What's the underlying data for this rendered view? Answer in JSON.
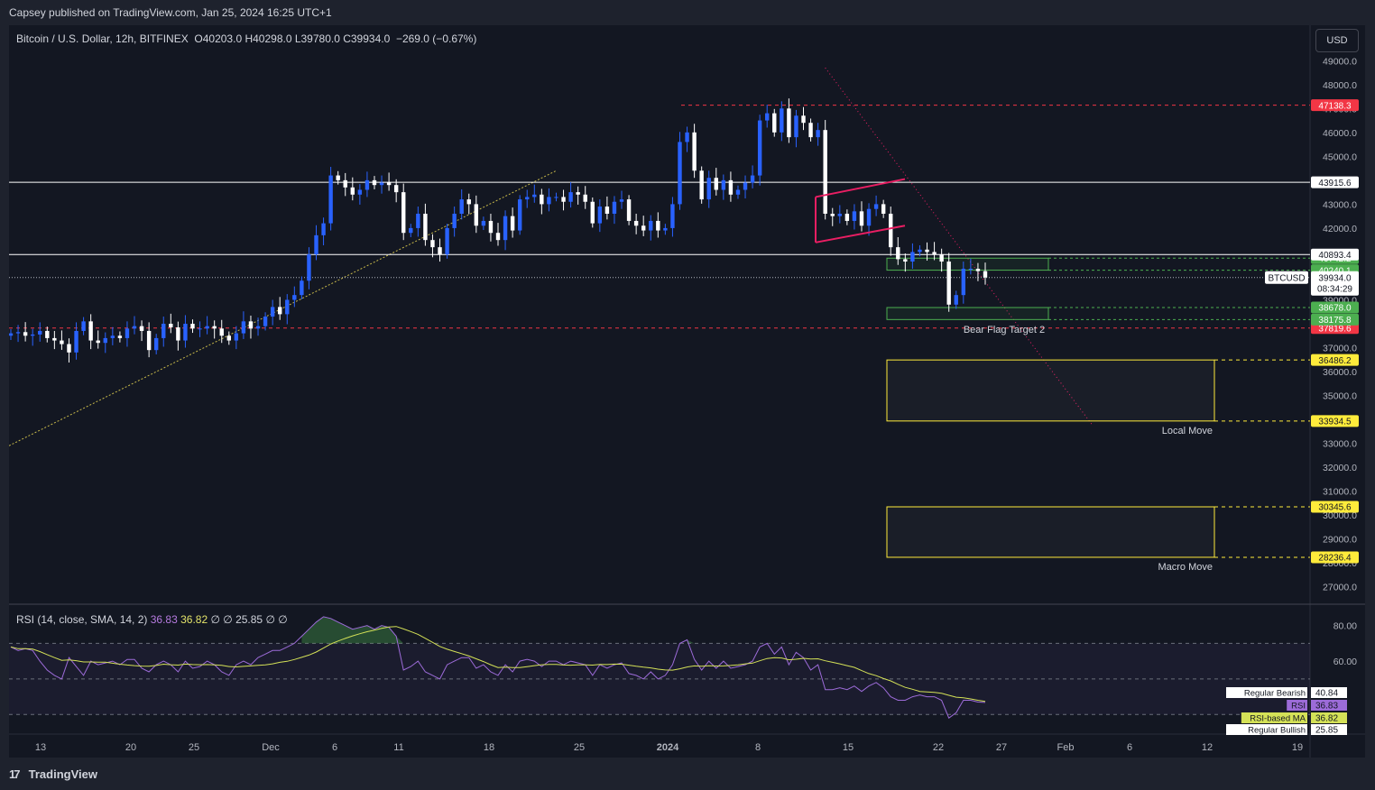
{
  "header": {
    "publisher": "Capsey published on TradingView.com, Jan 25, 2024 16:25 UTC+1"
  },
  "legend": {
    "symbol": "Bitcoin / U.S. Dollar, 12h, BITFINEX",
    "ohlc": "O40203.0  H40298.0  L39780.0  C39934.0",
    "change": "−269.0 (−0.67%)"
  },
  "currency": "USD",
  "footer": {
    "brand": "TradingView",
    "logo": "17"
  },
  "colors": {
    "bg": "#131722",
    "bull": "#2962ff",
    "bear": "#ffffff",
    "red_line": "#f23645",
    "pink": "#e91e63",
    "green_box": "#4caf50",
    "yellow": "#ffeb3b",
    "rsi_line": "#9c6bd8",
    "rsi_ma": "#d4e157"
  },
  "chart_data": {
    "type": "candlestick",
    "symbol": "BTCUSD",
    "interval": "12h",
    "ylim": [
      26500,
      49500
    ],
    "y_ticks": [
      27000,
      28000,
      29000,
      30000,
      31000,
      32000,
      33000,
      34000,
      35000,
      36000,
      37000,
      38000,
      39000,
      40000,
      41000,
      42000,
      43000,
      44000,
      45000,
      46000,
      47000,
      48000,
      49000
    ],
    "x_labels": [
      "13",
      "20",
      "25",
      "Dec",
      "6",
      "11",
      "18",
      "25",
      "2024",
      "8",
      "15",
      "22",
      "27",
      "Feb",
      "6",
      "12",
      "19"
    ],
    "close": [
      37600,
      37650,
      37500,
      37550,
      37700,
      37400,
      37300,
      37150,
      36800,
      37700,
      38100,
      37300,
      37200,
      37400,
      37500,
      37400,
      37800,
      37900,
      37700,
      36900,
      37400,
      38000,
      37850,
      37300,
      38000,
      37800,
      37800,
      37900,
      37800,
      37500,
      37300,
      37600,
      38100,
      37800,
      37900,
      38300,
      38700,
      38400,
      39000,
      39200,
      39800,
      40900,
      41700,
      42200,
      44200,
      44000,
      43700,
      43400,
      43600,
      44000,
      43800,
      43900,
      43800,
      43500,
      41800,
      42000,
      42600,
      41500,
      41200,
      40900,
      42000,
      42600,
      43200,
      43000,
      42100,
      42300,
      41800,
      41500,
      42500,
      41900,
      43200,
      43300,
      43400,
      43000,
      43300,
      43300,
      43100,
      43500,
      43400,
      43100,
      42200,
      42900,
      42600,
      43100,
      43200,
      42300,
      42100,
      41900,
      42300,
      41900,
      42000,
      43000,
      45600,
      46000,
      44400,
      43200,
      44100,
      43600,
      44000,
      43400,
      43600,
      43900,
      44200,
      46500,
      46800,
      46000,
      47000,
      45800,
      46700,
      46400,
      45800,
      46100,
      42600,
      42500,
      42600,
      42300,
      42700,
      42100,
      42800,
      43000,
      42600,
      41200,
      40700,
      40600,
      41000,
      41100,
      41000,
      40900,
      40600,
      38800,
      39200,
      40300,
      40300,
      40200,
      39934
    ],
    "tags_right": {
      "black": [
        "43915.6",
        "40893.4",
        "39934.0"
      ],
      "green": [
        "40742.2",
        "40240.1",
        "38678.0",
        "38175.8"
      ],
      "red": [
        "47138.3",
        "37819.6"
      ],
      "yellow": [
        "36486.2",
        "33934.5",
        "30345.6",
        "28236.4"
      ],
      "countdown": "08:34:29",
      "symbol_tag": "BTCUSD"
    },
    "annotations": {
      "bear_flag": "Bear Flag Target 2",
      "local_move": "Local Move",
      "macro_move": "Macro Move"
    },
    "rsi": {
      "title": "RSI (14, close, SMA, 14, 2)",
      "value": "36.83",
      "ma_value": "36.82",
      "extra": "25.85",
      "null_glyph": "∅",
      "ylim": [
        20,
        90
      ],
      "ticks": [
        "80.00",
        "60.00"
      ],
      "band": [
        30,
        70
      ],
      "mid": 50,
      "labels": [
        {
          "name": "Regular Bearish",
          "value": "40.84"
        },
        {
          "name": "RSI",
          "value": "36.83"
        },
        {
          "name": "RSI-based MA",
          "value": "36.82"
        },
        {
          "name": "Regular Bullish",
          "value": "25.85"
        }
      ],
      "values": [
        68,
        66,
        67,
        66,
        60,
        55,
        52,
        50,
        62,
        57,
        52,
        60,
        58,
        59,
        60,
        58,
        61,
        61,
        56,
        54,
        58,
        60,
        58,
        54,
        60,
        56,
        57,
        60,
        58,
        54,
        52,
        58,
        60,
        58,
        62,
        64,
        66,
        66,
        68,
        70,
        74,
        78,
        82,
        85,
        84,
        82,
        80,
        78,
        79,
        80,
        78,
        80,
        79,
        74,
        55,
        57,
        60,
        54,
        52,
        50,
        58,
        60,
        62,
        62,
        56,
        58,
        54,
        52,
        58,
        54,
        60,
        61,
        60,
        57,
        60,
        60,
        58,
        60,
        59,
        58,
        52,
        58,
        56,
        58,
        59,
        53,
        52,
        50,
        54,
        50,
        52,
        58,
        70,
        72,
        61,
        55,
        60,
        56,
        60,
        56,
        57,
        58,
        60,
        68,
        70,
        64,
        68,
        58,
        65,
        62,
        55,
        58,
        44,
        44,
        45,
        44,
        46,
        43,
        46,
        48,
        45,
        40,
        38,
        38,
        40,
        41,
        40,
        40,
        38,
        28,
        31,
        38,
        38,
        37,
        36.8
      ]
    }
  }
}
